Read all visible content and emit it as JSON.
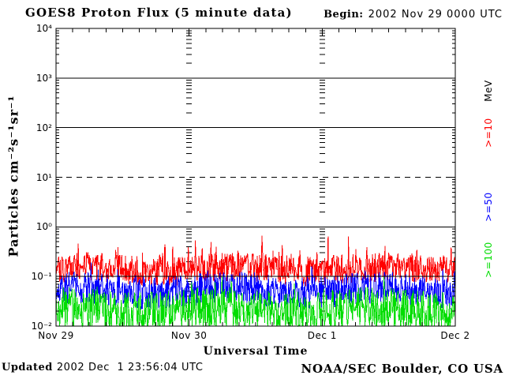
{
  "page": {
    "background": "#ffffff"
  },
  "header": {
    "title": "GOES8 Proton Flux (5 minute data)",
    "begin_label": "Begin:",
    "begin_value": "2002 Nov 29 0000 UTC"
  },
  "footer": {
    "updated_label": "Updated",
    "updated_value": "2002 Dec  1 23:56:04 UTC",
    "credit": "NOAA/SEC Boulder, CO USA"
  },
  "chart_data": {
    "type": "line",
    "title": "GOES8 Proton Flux (5 minute data)",
    "xlabel": "Universal Time",
    "ylabel": "Particles cm⁻²s⁻¹sr⁻¹",
    "x_range_days": 3,
    "x_tick_labels": [
      "Nov 29",
      "Nov 30",
      "Dec 1",
      "Dec 2"
    ],
    "x_minor_ticks_per_day": 8,
    "yaxis": {
      "scale": "log",
      "min_exp": -2,
      "max_exp": 4,
      "tick_labels": [
        "10⁴",
        "10³",
        "10²",
        "10¹",
        "10⁰",
        "10⁻¹",
        "10⁻²"
      ],
      "solid_gridline_exps": [
        3,
        2,
        0,
        -1
      ],
      "dashed_gridline_exps": [
        1
      ]
    },
    "legend": {
      "units_label": "MeV",
      "entries": [
        {
          "label": ">=10",
          "color": "#ff0000"
        },
        {
          "label": ">=50",
          "color": "#0000ff"
        },
        {
          "label": ">=100",
          "color": "#00dd00"
        }
      ]
    },
    "series": [
      {
        "name": "protons_gte_10MeV",
        "color": "#ff0000",
        "samples_per_day": 288,
        "approx_log10_median": -0.85,
        "approx_log10_range": [
          -1.15,
          -0.2
        ],
        "noise_amp": 0.3,
        "spike_prob": 0.08,
        "spike_amp": 0.45,
        "seed": 101
      },
      {
        "name": "protons_gte_50MeV",
        "color": "#0000ff",
        "samples_per_day": 288,
        "approx_log10_median": -1.28,
        "approx_log10_range": [
          -1.65,
          -0.9
        ],
        "noise_amp": 0.33,
        "spike_prob": 0.05,
        "spike_amp": 0.3,
        "seed": 202
      },
      {
        "name": "protons_gte_100MeV",
        "color": "#00dd00",
        "samples_per_day": 288,
        "approx_log10_median": -1.68,
        "approx_log10_range": [
          -2.0,
          -1.2
        ],
        "noise_amp": 0.42,
        "spike_prob": 0.05,
        "spike_amp": 0.3,
        "seed": 303
      }
    ]
  }
}
